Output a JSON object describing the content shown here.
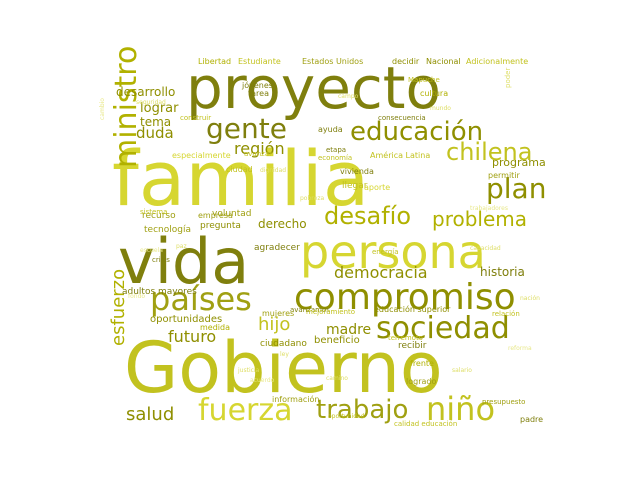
{
  "colors": {
    "background": "#ffffff",
    "palette": [
      "#7f7f0d",
      "#8f8f00",
      "#a0a012",
      "#b1b100",
      "#c2c21f",
      "#d6d631",
      "#dede66",
      "#e8e88a"
    ]
  },
  "words": [
    {
      "text": "Gobierno",
      "color": "#c2c21f"
    },
    {
      "text": "familia",
      "color": "#d6d631"
    },
    {
      "text": "proyecto",
      "color": "#7f7f0d"
    },
    {
      "text": "vida",
      "color": "#7f7f0d"
    },
    {
      "text": "persona",
      "color": "#d6d631"
    },
    {
      "text": "compromiso",
      "color": "#8f8f00"
    },
    {
      "text": "países",
      "color": "#a0a012"
    },
    {
      "text": "sociedad",
      "color": "#8f8f00"
    },
    {
      "text": "educación",
      "color": "#8f8f00"
    },
    {
      "text": "gente",
      "color": "#7f7f0d"
    },
    {
      "text": "trabajo",
      "color": "#a0a012"
    },
    {
      "text": "niño",
      "color": "#c2c21f"
    },
    {
      "text": "fuerza",
      "color": "#d6d631"
    },
    {
      "text": "ministro",
      "color": "#b1b100"
    },
    {
      "text": "chilena",
      "color": "#c2c21f"
    },
    {
      "text": "plan",
      "color": "#8f8f00"
    },
    {
      "text": "desafío",
      "color": "#b1b100"
    },
    {
      "text": "problema",
      "color": "#b1b100"
    },
    {
      "text": "democracia",
      "color": "#8f8f00"
    },
    {
      "text": "salud",
      "color": "#8f8f00"
    },
    {
      "text": "esfuerzo",
      "color": "#b1b100"
    },
    {
      "text": "hijo",
      "color": "#c2c21f"
    },
    {
      "text": "futuro",
      "color": "#8f8f00"
    },
    {
      "text": "madre",
      "color": "#8f8f00"
    },
    {
      "text": "región",
      "color": "#8f8f00"
    },
    {
      "text": "duda",
      "color": "#8f8f00"
    },
    {
      "text": "desarrollo",
      "color": "#8f8f00"
    },
    {
      "text": "lograr",
      "color": "#8f8f00"
    },
    {
      "text": "tema",
      "color": "#8f8f00"
    },
    {
      "text": "historia",
      "color": "#7f7f0d"
    },
    {
      "text": "programa",
      "color": "#8f8f00"
    },
    {
      "text": "derecho",
      "color": "#8f8f00"
    },
    {
      "text": "oportunidades",
      "color": "#8f8f00"
    },
    {
      "text": "beneficio",
      "color": "#8f8f00"
    },
    {
      "text": "adultos mayores",
      "color": "#7f7f0d"
    },
    {
      "text": "agradecer",
      "color": "#7f7f0d"
    },
    {
      "text": "voluntad",
      "color": "#a0a012"
    },
    {
      "text": "recurso",
      "color": "#a0a012"
    },
    {
      "text": "tecnología",
      "color": "#a0a012"
    },
    {
      "text": "pregunta",
      "color": "#8f8f00"
    },
    {
      "text": "ciudadano",
      "color": "#8f8f00"
    },
    {
      "text": "especialmente",
      "color": "#d6d631"
    },
    {
      "text": "ayuda",
      "color": "#7f7f0d"
    },
    {
      "text": "ciudad",
      "color": "#c2c21f"
    },
    {
      "text": "empresa",
      "color": "#a0a012"
    },
    {
      "text": "medida",
      "color": "#b1b100"
    },
    {
      "text": "Libertad",
      "color": "#b1b100"
    },
    {
      "text": "Estudiante",
      "color": "#c2c21f"
    },
    {
      "text": "Estados Unidos",
      "color": "#a0a012"
    },
    {
      "text": "decidir",
      "color": "#8f8f00"
    },
    {
      "text": "Nacional",
      "color": "#8f8f00"
    },
    {
      "text": "Adicionalmente",
      "color": "#c2c21f"
    },
    {
      "text": "Mapuche",
      "color": "#c2c21f"
    },
    {
      "text": "cultura",
      "color": "#b1b100"
    },
    {
      "text": "etapa",
      "color": "#7f7f0d"
    },
    {
      "text": "economía",
      "color": "#c2c21f"
    },
    {
      "text": "vivienda",
      "color": "#7f7f0d"
    },
    {
      "text": "llegar",
      "color": "#c2c21f"
    },
    {
      "text": "aporte",
      "color": "#d6d631"
    },
    {
      "text": "América Latina",
      "color": "#c2c21f"
    },
    {
      "text": "avanzar",
      "color": "#c2c21f"
    },
    {
      "text": "avanzamos",
      "color": "#7f7f0d"
    },
    {
      "text": "permitir",
      "color": "#a0a012"
    },
    {
      "text": "mujeres",
      "color": "#a0a012"
    },
    {
      "text": "educación superior",
      "color": "#8f8f00"
    },
    {
      "text": "recibir",
      "color": "#7f7f0d"
    },
    {
      "text": "frente",
      "color": "#b1b100"
    },
    {
      "text": "logrado",
      "color": "#a0a012"
    },
    {
      "text": "información",
      "color": "#a0a012"
    },
    {
      "text": "terremoto",
      "color": "#c2c21f"
    },
    {
      "text": "presupuesto",
      "color": "#a0a012"
    },
    {
      "text": "sistema",
      "color": "#c2c21f"
    },
    {
      "text": "crisis",
      "color": "#7f7f0d"
    },
    {
      "text": "jóvenes",
      "color": "#7f7f0d"
    },
    {
      "text": "tarea",
      "color": "#7f7f0d"
    },
    {
      "text": "construir",
      "color": "#c2c21f"
    },
    {
      "text": "mejoramiento",
      "color": "#c2c21f"
    },
    {
      "text": "relación",
      "color": "#c2c21f"
    },
    {
      "text": "oportunidad",
      "color": "#c2c21f"
    },
    {
      "text": "padre",
      "color": "#7f7f0d"
    },
    {
      "text": "energía",
      "color": "#c2c21f"
    },
    {
      "text": "consecuencia",
      "color": "#7f7f0d"
    },
    {
      "text": "calidad educación",
      "color": "#c2c21f"
    },
    {
      "text": "poder",
      "color": "#dede66"
    },
    {
      "text": "seguridad",
      "color": "#dede66"
    },
    {
      "text": "dignidad",
      "color": "#dede66"
    },
    {
      "text": "ley",
      "color": "#dede66"
    },
    {
      "text": "mundo",
      "color": "#dede66"
    },
    {
      "text": "capacidad",
      "color": "#dede66"
    },
    {
      "text": "pobreza",
      "color": "#dede66"
    },
    {
      "text": "paz",
      "color": "#dede66"
    },
    {
      "text": "salario",
      "color": "#dede66"
    },
    {
      "text": "campo",
      "color": "#dede66"
    },
    {
      "text": "justicia",
      "color": "#dede66"
    },
    {
      "text": "camino",
      "color": "#dede66"
    },
    {
      "text": "nación",
      "color": "#dede66"
    },
    {
      "text": "cambio",
      "color": "#e8e88a"
    },
    {
      "text": "trabajadores",
      "color": "#e8e88a"
    },
    {
      "text": "escuela",
      "color": "#e8e88a"
    },
    {
      "text": "reforma",
      "color": "#e8e88a"
    },
    {
      "text": "acuerdo",
      "color": "#e8e88a"
    },
    {
      "text": "fondo",
      "color": "#e8e88a"
    }
  ]
}
